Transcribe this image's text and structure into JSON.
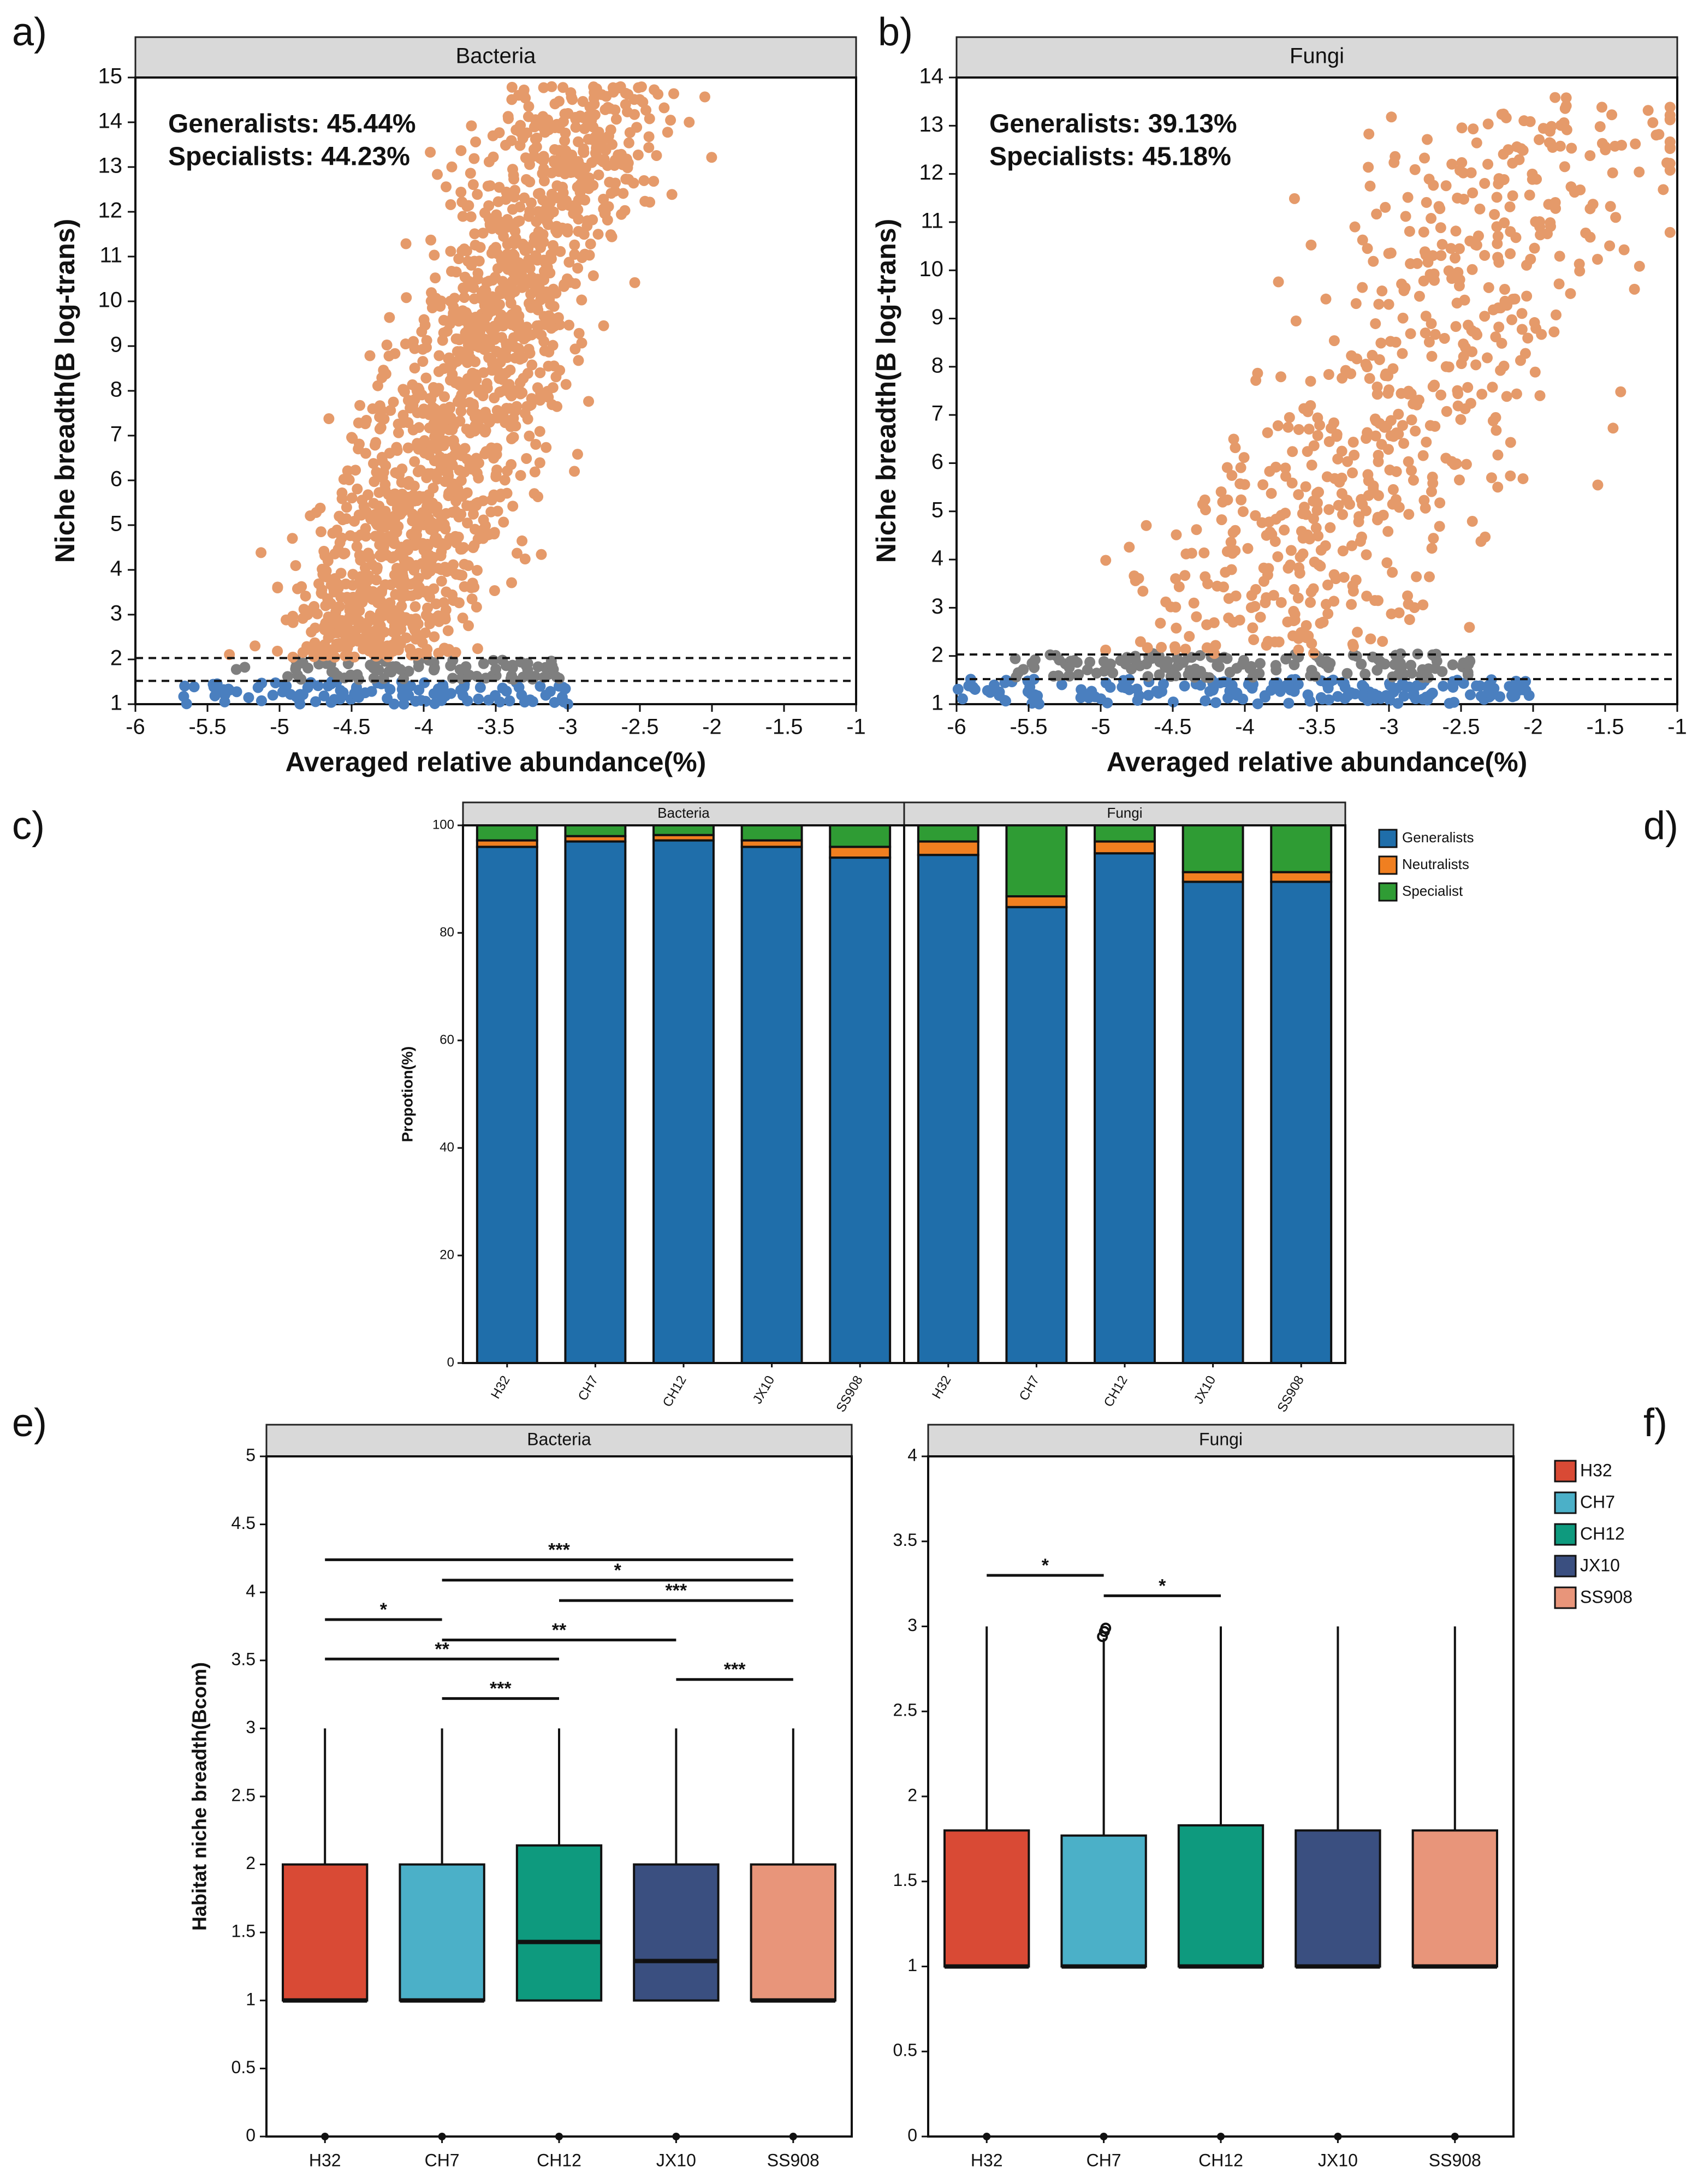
{
  "colors": {
    "generalist_point": "#E59A6A",
    "neutral_point": "#7F7F7F",
    "specialist_point": "#4A7FBF",
    "bar_generalists": "#1F6EAA",
    "bar_neutralists": "#F07F20",
    "bar_specialist": "#2F9C34",
    "strip": "#D9D9D9"
  },
  "panel_labels": [
    "a)",
    "b)",
    "c)",
    "d)",
    "e)",
    "f)"
  ],
  "chart_data": [
    {
      "id": "a",
      "type": "scatter",
      "strip_title": "Bacteria",
      "xlabel": "Averaged relative abundance(%)",
      "ylabel": "Niche breadth(B log-trans)",
      "xlim": [
        -6,
        -1
      ],
      "ylim": [
        1,
        15
      ],
      "xticks": [
        -6,
        -5.5,
        -5,
        -4.5,
        -4,
        -3.5,
        -3,
        -2.5,
        -2,
        -1.5,
        -1
      ],
      "yticks": [
        1,
        2,
        3,
        4,
        5,
        6,
        7,
        8,
        9,
        10,
        11,
        12,
        13,
        14,
        15
      ],
      "thresholds": [
        2.03,
        1.52
      ],
      "annotations": [
        "Generalists: 45.44%",
        "Specialists: 44.23%"
      ],
      "cloud": {
        "generalists": {
          "n": 1500,
          "x_center": -4.0,
          "x_spread": 0.4,
          "y_range": [
            2.05,
            14.8
          ],
          "x_slope": 0.12
        },
        "neutrals": {
          "n": 90,
          "x_range": [
            -5.3,
            -3.0
          ],
          "y_range": [
            1.55,
            2.05
          ]
        },
        "specialists": {
          "n": 110,
          "x_range": [
            -5.7,
            -3.0
          ],
          "y_range": [
            1.0,
            1.52
          ]
        }
      }
    },
    {
      "id": "b",
      "type": "scatter",
      "strip_title": "Fungi",
      "xlabel": "Averaged relative abundance(%)",
      "ylabel": "Niche breadth(B log-trans)",
      "xlim": [
        -6,
        -1
      ],
      "ylim": [
        1,
        14
      ],
      "xticks": [
        -6,
        -5.5,
        -5,
        -4.5,
        -4,
        -3.5,
        -3,
        -2.5,
        -2,
        -1.5,
        -1
      ],
      "yticks": [
        1,
        2,
        3,
        4,
        5,
        6,
        7,
        8,
        9,
        10,
        11,
        12,
        13,
        14
      ],
      "thresholds": [
        2.03,
        1.52
      ],
      "annotations": [
        "Generalists: 39.13%",
        "Specialists: 45.18%"
      ],
      "cloud": {
        "generalists": {
          "n": 620,
          "x_center": -4.0,
          "x_spread": 0.55,
          "y_range": [
            2.05,
            13.6
          ],
          "x_slope": 0.2
        },
        "neutrals": {
          "n": 140,
          "x_range": [
            -5.6,
            -2.4
          ],
          "y_range": [
            1.55,
            2.05
          ]
        },
        "specialists": {
          "n": 180,
          "x_range": [
            -6.0,
            -2.0
          ],
          "y_range": [
            1.0,
            1.52
          ]
        }
      }
    },
    {
      "id": "c",
      "type": "bar",
      "stacked": true,
      "ylabel": "Propotion(%)",
      "ylim": [
        0,
        100
      ],
      "yticks": [
        0,
        20,
        40,
        60,
        80,
        100
      ],
      "legend": [
        "Generalists",
        "Neutralists",
        "Specialist"
      ],
      "facets": [
        {
          "title": "Bacteria",
          "categories": [
            "H32",
            "CH7",
            "CH12",
            "JX10",
            "SS908"
          ],
          "series": [
            {
              "name": "Generalists",
              "values": [
                96.0,
                97.0,
                97.2,
                96.0,
                94.0
              ]
            },
            {
              "name": "Neutralists",
              "values": [
                1.2,
                1.0,
                1.0,
                1.2,
                2.0
              ]
            },
            {
              "name": "Specialist",
              "values": [
                2.8,
                2.0,
                1.8,
                2.8,
                4.0
              ]
            }
          ]
        },
        {
          "title": "Fungi",
          "categories": [
            "H32",
            "CH7",
            "CH12",
            "JX10",
            "SS908"
          ],
          "series": [
            {
              "name": "Generalists",
              "values": [
                94.5,
                84.8,
                94.8,
                89.5,
                89.5
              ]
            },
            {
              "name": "Neutralists",
              "values": [
                2.5,
                2.0,
                2.2,
                1.8,
                1.8
              ]
            },
            {
              "name": "Specialist",
              "values": [
                3.0,
                13.2,
                3.0,
                8.7,
                8.7
              ]
            }
          ]
        }
      ]
    },
    {
      "id": "e",
      "type": "box",
      "strip_title": "Bacteria",
      "ylabel": "Habitat niche breadth(Bcom)",
      "ylim": [
        0,
        5
      ],
      "yticks": [
        0,
        0.5,
        1,
        1.5,
        2,
        2.5,
        3,
        3.5,
        4,
        4.5,
        5
      ],
      "categories": [
        "H32",
        "CH7",
        "CH12",
        "JX10",
        "SS908"
      ],
      "colors": [
        "#D94A35",
        "#4BB0C8",
        "#0E9A7E",
        "#3A4F80",
        "#E8957A"
      ],
      "boxes": [
        {
          "min": 0,
          "q1": 1,
          "median": 1,
          "q3": 2,
          "max": 3
        },
        {
          "min": 0,
          "q1": 1,
          "median": 1,
          "q3": 2,
          "max": 3
        },
        {
          "min": 0,
          "q1": 1,
          "median": 1.43,
          "q3": 2.14,
          "max": 3
        },
        {
          "min": 0,
          "q1": 1,
          "median": 1.29,
          "q3": 2,
          "max": 3
        },
        {
          "min": 0,
          "q1": 1,
          "median": 1,
          "q3": 2,
          "max": 3
        }
      ],
      "outliers": [],
      "brackets": [
        {
          "from": 0,
          "to": 4,
          "y": 4.24,
          "label": "***"
        },
        {
          "from": 1,
          "to": 4,
          "y": 4.09,
          "label": "*"
        },
        {
          "from": 2,
          "to": 4,
          "y": 3.94,
          "label": "***"
        },
        {
          "from": 0,
          "to": 1,
          "y": 3.8,
          "label": "*"
        },
        {
          "from": 1,
          "to": 3,
          "y": 3.65,
          "label": "**"
        },
        {
          "from": 0,
          "to": 2,
          "y": 3.51,
          "label": "**"
        },
        {
          "from": 3,
          "to": 4,
          "y": 3.36,
          "label": "***"
        },
        {
          "from": 1,
          "to": 2,
          "y": 3.22,
          "label": "***"
        }
      ]
    },
    {
      "id": "f",
      "type": "box",
      "strip_title": "Fungi",
      "ylabel": "",
      "ylim": [
        0,
        4
      ],
      "yticks": [
        0,
        0.5,
        1,
        1.5,
        2,
        2.5,
        3,
        3.5,
        4
      ],
      "categories": [
        "H32",
        "CH7",
        "CH12",
        "JX10",
        "SS908"
      ],
      "colors": [
        "#D94A35",
        "#4BB0C8",
        "#0E9A7E",
        "#3A4F80",
        "#E8957A"
      ],
      "boxes": [
        {
          "min": 0,
          "q1": 1,
          "median": 1,
          "q3": 1.8,
          "max": 3
        },
        {
          "min": 0,
          "q1": 1,
          "median": 1,
          "q3": 1.77,
          "max": 2.93
        },
        {
          "min": 0,
          "q1": 1,
          "median": 1,
          "q3": 1.83,
          "max": 3
        },
        {
          "min": 0,
          "q1": 1,
          "median": 1,
          "q3": 1.8,
          "max": 3
        },
        {
          "min": 0,
          "q1": 1,
          "median": 1,
          "q3": 1.8,
          "max": 3
        }
      ],
      "outliers": [
        {
          "group": 1,
          "value": 2.94
        },
        {
          "group": 1,
          "value": 2.97
        },
        {
          "group": 1,
          "value": 2.99
        }
      ],
      "brackets": [
        {
          "from": 0,
          "to": 1,
          "y": 3.3,
          "label": "*"
        },
        {
          "from": 1,
          "to": 2,
          "y": 3.18,
          "label": "*"
        }
      ],
      "legend": [
        "H32",
        "CH7",
        "CH12",
        "JX10",
        "SS908"
      ]
    }
  ]
}
